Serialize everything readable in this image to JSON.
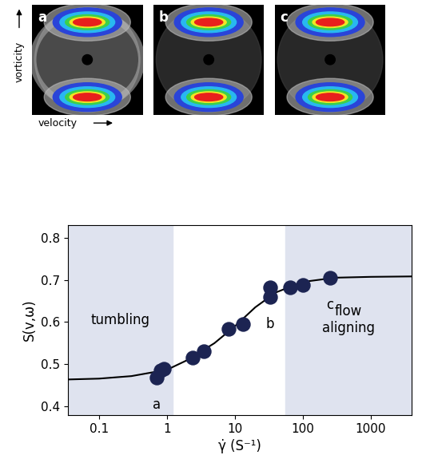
{
  "chart_data": {
    "type": "scatter",
    "x": [
      0.7,
      0.8,
      0.9,
      2.4,
      3.5,
      8,
      13,
      33,
      33,
      65,
      100,
      250
    ],
    "values": [
      0.468,
      0.485,
      0.49,
      0.515,
      0.53,
      0.583,
      0.595,
      0.682,
      0.66,
      0.683,
      0.688,
      0.705
    ],
    "color": "#1c2452",
    "marker": "o",
    "fit": {
      "type": "line",
      "x": [
        0.035,
        0.1,
        0.3,
        1,
        2,
        5,
        10,
        20,
        40,
        100,
        300,
        1000,
        4000
      ],
      "values": [
        0.464,
        0.466,
        0.472,
        0.487,
        0.51,
        0.55,
        0.59,
        0.635,
        0.67,
        0.695,
        0.705,
        0.707,
        0.708
      ],
      "color": "#000000"
    },
    "regions": [
      {
        "label": "tumbling",
        "x": [
          0.035,
          1.2
        ],
        "color": "#dfe3ef"
      },
      {
        "label": "flow aligning",
        "x": [
          55,
          4000
        ],
        "color": "#dfe3ef"
      }
    ],
    "xlabel": "γ̇ (S⁻¹)",
    "ylabel": "S(v,ω)",
    "log": "x",
    "xlim": [
      0.035,
      4000
    ],
    "xticks": [
      0.1,
      1,
      10,
      100,
      1000
    ],
    "ylim": [
      0.38,
      0.83
    ],
    "yticks": [
      0.4,
      0.5,
      0.6,
      0.7,
      0.8
    ],
    "annotations": [
      {
        "text": "a",
        "x": 0.7,
        "y": 0.468
      },
      {
        "text": "b",
        "x": 33,
        "y": 0.66
      },
      {
        "text": "c",
        "x": 250,
        "y": 0.705
      }
    ]
  },
  "panels": [
    {
      "label": "a"
    },
    {
      "label": "b"
    },
    {
      "label": "c"
    }
  ],
  "panel_axes": {
    "vertical": "vorticity",
    "horizontal": "velocity"
  }
}
